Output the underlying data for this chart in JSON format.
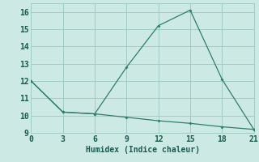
{
  "line1_x": [
    0,
    3,
    6,
    9,
    12,
    15,
    18,
    21
  ],
  "line1_y": [
    12.0,
    10.2,
    10.1,
    12.8,
    15.2,
    16.1,
    12.1,
    9.2
  ],
  "line2_x": [
    0,
    3,
    6,
    9,
    12,
    15,
    18,
    21
  ],
  "line2_y": [
    12.0,
    10.2,
    10.1,
    9.9,
    9.7,
    9.55,
    9.35,
    9.2
  ],
  "line_color": "#2e7d6e",
  "bg_color": "#cce9e4",
  "grid_color": "#a0ccc6",
  "xlabel": "Humidex (Indice chaleur)",
  "xlim": [
    0,
    21
  ],
  "ylim": [
    9,
    16.5
  ],
  "xticks": [
    0,
    3,
    6,
    9,
    12,
    15,
    18,
    21
  ],
  "yticks": [
    9,
    10,
    11,
    12,
    13,
    14,
    15,
    16
  ],
  "label_fontsize": 7,
  "tick_fontsize": 7,
  "marker_size": 2.0,
  "line_width": 0.9
}
